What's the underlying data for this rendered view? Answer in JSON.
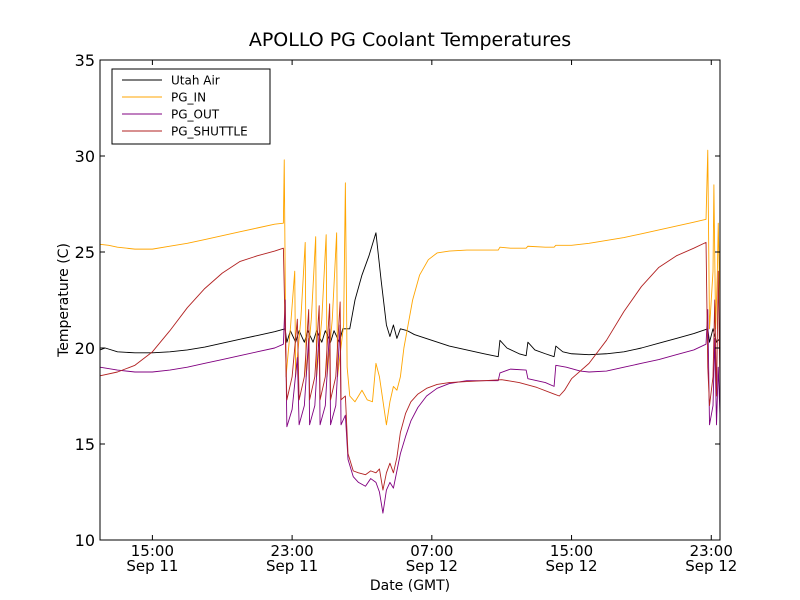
{
  "chart_data": {
    "type": "line",
    "title": "APOLLO PG Coolant Temperatures",
    "xlabel": "Date (GMT)",
    "ylabel": "Temperature (C)",
    "ylim": [
      10,
      35
    ],
    "xlim_hours": [
      12.0,
      47.5
    ],
    "x_unit": "hours since Sep 11 00:00 GMT",
    "grid": false,
    "legend_position": "top-left",
    "yticks": [
      {
        "value": 10,
        "label": "10"
      },
      {
        "value": 15,
        "label": "15"
      },
      {
        "value": 20,
        "label": "20"
      },
      {
        "value": 25,
        "label": "25"
      },
      {
        "value": 30,
        "label": "30"
      },
      {
        "value": 35,
        "label": "35"
      }
    ],
    "xticks": [
      {
        "value": 15,
        "time": "15:00",
        "date": "Sep 11"
      },
      {
        "value": 23,
        "time": "23:00",
        "date": "Sep 11"
      },
      {
        "value": 31,
        "time": "07:00",
        "date": "Sep 12"
      },
      {
        "value": 39,
        "time": "15:00",
        "date": "Sep 12"
      },
      {
        "value": 47,
        "time": "23:00",
        "date": "Sep 12"
      }
    ],
    "series": [
      {
        "name": "Utah Air",
        "color": "#000000",
        "points": [
          [
            12.0,
            19.9
          ],
          [
            12.3,
            20.0
          ],
          [
            13.0,
            19.8
          ],
          [
            14.0,
            19.75
          ],
          [
            15.0,
            19.75
          ],
          [
            16.0,
            19.8
          ],
          [
            17.0,
            19.9
          ],
          [
            18.0,
            20.05
          ],
          [
            19.0,
            20.25
          ],
          [
            20.0,
            20.45
          ],
          [
            21.0,
            20.65
          ],
          [
            22.0,
            20.85
          ],
          [
            22.6,
            21.0
          ],
          [
            22.7,
            20.3
          ],
          [
            22.9,
            20.9
          ],
          [
            23.2,
            20.3
          ],
          [
            23.4,
            20.9
          ],
          [
            23.7,
            20.3
          ],
          [
            23.9,
            20.9
          ],
          [
            24.2,
            20.3
          ],
          [
            24.4,
            20.9
          ],
          [
            24.7,
            20.3
          ],
          [
            24.9,
            20.9
          ],
          [
            25.2,
            20.3
          ],
          [
            25.4,
            20.9
          ],
          [
            25.7,
            20.3
          ],
          [
            25.9,
            21.0
          ],
          [
            26.3,
            21.0
          ],
          [
            26.6,
            22.5
          ],
          [
            27.0,
            23.8
          ],
          [
            27.4,
            24.8
          ],
          [
            27.8,
            26.0
          ],
          [
            28.1,
            23.5
          ],
          [
            28.4,
            21.2
          ],
          [
            28.6,
            20.6
          ],
          [
            28.8,
            21.2
          ],
          [
            29.0,
            20.5
          ],
          [
            29.2,
            21.0
          ],
          [
            29.6,
            20.9
          ],
          [
            30.0,
            20.7
          ],
          [
            31.0,
            20.4
          ],
          [
            32.0,
            20.1
          ],
          [
            33.0,
            19.9
          ],
          [
            34.0,
            19.7
          ],
          [
            34.8,
            19.55
          ],
          [
            34.9,
            20.4
          ],
          [
            35.3,
            20.0
          ],
          [
            36.0,
            19.7
          ],
          [
            36.4,
            19.6
          ],
          [
            36.5,
            20.3
          ],
          [
            36.9,
            19.9
          ],
          [
            37.5,
            19.7
          ],
          [
            38.0,
            19.55
          ],
          [
            38.1,
            20.1
          ],
          [
            38.5,
            19.8
          ],
          [
            39.0,
            19.7
          ],
          [
            40.0,
            19.65
          ],
          [
            41.0,
            19.7
          ],
          [
            42.0,
            19.8
          ],
          [
            43.0,
            20.0
          ],
          [
            44.0,
            20.25
          ],
          [
            45.0,
            20.5
          ],
          [
            46.0,
            20.75
          ],
          [
            46.8,
            21.0
          ],
          [
            46.9,
            20.3
          ],
          [
            47.1,
            21.0
          ],
          [
            47.3,
            20.3
          ],
          [
            47.5,
            20.5
          ]
        ]
      },
      {
        "name": "PG_IN",
        "color": "#ffa500",
        "points": [
          [
            12.0,
            25.4
          ],
          [
            12.5,
            25.35
          ],
          [
            13.0,
            25.25
          ],
          [
            14.0,
            25.15
          ],
          [
            15.0,
            25.15
          ],
          [
            16.0,
            25.3
          ],
          [
            17.0,
            25.45
          ],
          [
            18.0,
            25.65
          ],
          [
            19.0,
            25.85
          ],
          [
            20.0,
            26.05
          ],
          [
            21.0,
            26.25
          ],
          [
            22.0,
            26.45
          ],
          [
            22.5,
            26.5
          ],
          [
            22.55,
            29.8
          ],
          [
            22.65,
            18.5
          ],
          [
            22.9,
            21.0
          ],
          [
            23.15,
            24.0
          ],
          [
            23.2,
            18.5
          ],
          [
            23.5,
            21.5
          ],
          [
            23.75,
            25.5
          ],
          [
            23.8,
            18.5
          ],
          [
            24.1,
            21.5
          ],
          [
            24.35,
            25.8
          ],
          [
            24.4,
            18.5
          ],
          [
            24.7,
            21.5
          ],
          [
            24.95,
            25.9
          ],
          [
            25.0,
            18.5
          ],
          [
            25.3,
            21.5
          ],
          [
            25.55,
            26.0
          ],
          [
            25.6,
            18.5
          ],
          [
            25.95,
            21.2
          ],
          [
            26.05,
            28.6
          ],
          [
            26.15,
            19.0
          ],
          [
            26.3,
            17.5
          ],
          [
            26.6,
            17.2
          ],
          [
            27.0,
            17.8
          ],
          [
            27.3,
            17.3
          ],
          [
            27.6,
            17.2
          ],
          [
            27.8,
            19.2
          ],
          [
            28.0,
            18.5
          ],
          [
            28.4,
            16.0
          ],
          [
            28.6,
            17.2
          ],
          [
            28.8,
            18.0
          ],
          [
            29.0,
            17.8
          ],
          [
            29.2,
            18.5
          ],
          [
            29.4,
            20.0
          ],
          [
            29.6,
            21.0
          ],
          [
            29.9,
            22.5
          ],
          [
            30.3,
            23.8
          ],
          [
            30.8,
            24.6
          ],
          [
            31.3,
            24.95
          ],
          [
            32.0,
            25.05
          ],
          [
            33.0,
            25.1
          ],
          [
            34.0,
            25.1
          ],
          [
            34.8,
            25.1
          ],
          [
            34.9,
            25.25
          ],
          [
            35.5,
            25.2
          ],
          [
            36.4,
            25.2
          ],
          [
            36.5,
            25.3
          ],
          [
            37.5,
            25.25
          ],
          [
            38.0,
            25.25
          ],
          [
            38.1,
            25.35
          ],
          [
            39.0,
            25.35
          ],
          [
            40.0,
            25.45
          ],
          [
            41.0,
            25.6
          ],
          [
            42.0,
            25.75
          ],
          [
            43.0,
            25.95
          ],
          [
            44.0,
            26.15
          ],
          [
            45.0,
            26.35
          ],
          [
            46.0,
            26.55
          ],
          [
            46.7,
            26.7
          ],
          [
            46.8,
            30.3
          ],
          [
            46.9,
            21.0
          ],
          [
            47.1,
            24.0
          ],
          [
            47.15,
            28.5
          ],
          [
            47.25,
            21.0
          ],
          [
            47.35,
            24.0
          ],
          [
            47.4,
            26.5
          ],
          [
            47.5,
            22.0
          ]
        ]
      },
      {
        "name": "PG_OUT",
        "color": "#800080",
        "points": [
          [
            12.0,
            19.0
          ],
          [
            13.0,
            18.85
          ],
          [
            14.0,
            18.75
          ],
          [
            15.0,
            18.75
          ],
          [
            16.0,
            18.85
          ],
          [
            17.0,
            19.0
          ],
          [
            18.0,
            19.2
          ],
          [
            19.0,
            19.4
          ],
          [
            20.0,
            19.6
          ],
          [
            21.0,
            19.8
          ],
          [
            22.0,
            20.0
          ],
          [
            22.5,
            20.2
          ],
          [
            22.6,
            22.5
          ],
          [
            22.7,
            15.9
          ],
          [
            23.0,
            16.8
          ],
          [
            23.3,
            19.5
          ],
          [
            23.4,
            16.0
          ],
          [
            23.7,
            17.0
          ],
          [
            23.95,
            20.5
          ],
          [
            24.0,
            16.0
          ],
          [
            24.3,
            17.0
          ],
          [
            24.55,
            20.8
          ],
          [
            24.6,
            16.0
          ],
          [
            24.9,
            17.0
          ],
          [
            25.15,
            21.0
          ],
          [
            25.2,
            16.0
          ],
          [
            25.5,
            17.0
          ],
          [
            25.75,
            21.2
          ],
          [
            25.8,
            16.0
          ],
          [
            26.05,
            16.5
          ],
          [
            26.2,
            14.2
          ],
          [
            26.5,
            13.3
          ],
          [
            26.8,
            13.0
          ],
          [
            27.2,
            12.8
          ],
          [
            27.5,
            13.2
          ],
          [
            27.8,
            13.0
          ],
          [
            28.0,
            12.5
          ],
          [
            28.2,
            11.4
          ],
          [
            28.4,
            12.6
          ],
          [
            28.6,
            13.0
          ],
          [
            28.8,
            12.7
          ],
          [
            29.0,
            13.6
          ],
          [
            29.2,
            14.5
          ],
          [
            29.5,
            15.4
          ],
          [
            29.8,
            16.2
          ],
          [
            30.2,
            16.9
          ],
          [
            30.7,
            17.5
          ],
          [
            31.3,
            17.9
          ],
          [
            32.0,
            18.15
          ],
          [
            33.0,
            18.3
          ],
          [
            34.0,
            18.3
          ],
          [
            34.8,
            18.3
          ],
          [
            34.9,
            18.7
          ],
          [
            35.5,
            18.9
          ],
          [
            36.4,
            18.85
          ],
          [
            36.5,
            18.4
          ],
          [
            37.5,
            18.2
          ],
          [
            38.0,
            18.0
          ],
          [
            38.1,
            19.1
          ],
          [
            38.7,
            19.0
          ],
          [
            39.5,
            18.8
          ],
          [
            40.0,
            18.75
          ],
          [
            41.0,
            18.8
          ],
          [
            42.0,
            19.0
          ],
          [
            43.0,
            19.2
          ],
          [
            44.0,
            19.4
          ],
          [
            45.0,
            19.65
          ],
          [
            46.0,
            19.9
          ],
          [
            46.7,
            20.2
          ],
          [
            46.8,
            22.0
          ],
          [
            46.9,
            16.0
          ],
          [
            47.1,
            17.0
          ],
          [
            47.2,
            20.5
          ],
          [
            47.3,
            16.0
          ],
          [
            47.4,
            19.0
          ],
          [
            47.5,
            16.5
          ]
        ]
      },
      {
        "name": "PG_SHUTTLE",
        "color": "#b22222",
        "points": [
          [
            12.0,
            18.55
          ],
          [
            13.0,
            18.75
          ],
          [
            14.0,
            19.1
          ],
          [
            15.0,
            19.8
          ],
          [
            16.0,
            20.9
          ],
          [
            17.0,
            22.1
          ],
          [
            18.0,
            23.1
          ],
          [
            19.0,
            23.9
          ],
          [
            20.0,
            24.5
          ],
          [
            21.0,
            24.8
          ],
          [
            22.0,
            25.05
          ],
          [
            22.5,
            25.2
          ],
          [
            22.6,
            21.0
          ],
          [
            22.7,
            17.3
          ],
          [
            23.0,
            18.5
          ],
          [
            23.3,
            21.5
          ],
          [
            23.4,
            17.3
          ],
          [
            23.7,
            18.5
          ],
          [
            23.95,
            22.0
          ],
          [
            24.0,
            17.3
          ],
          [
            24.3,
            18.5
          ],
          [
            24.55,
            22.2
          ],
          [
            24.6,
            17.3
          ],
          [
            24.9,
            18.5
          ],
          [
            25.15,
            22.3
          ],
          [
            25.2,
            17.3
          ],
          [
            25.5,
            18.5
          ],
          [
            25.75,
            22.4
          ],
          [
            25.8,
            17.3
          ],
          [
            26.05,
            17.5
          ],
          [
            26.2,
            14.5
          ],
          [
            26.5,
            13.6
          ],
          [
            26.8,
            13.5
          ],
          [
            27.2,
            13.4
          ],
          [
            27.5,
            13.6
          ],
          [
            27.8,
            13.5
          ],
          [
            28.0,
            13.7
          ],
          [
            28.2,
            12.6
          ],
          [
            28.4,
            13.5
          ],
          [
            28.6,
            14.0
          ],
          [
            28.8,
            13.5
          ],
          [
            29.0,
            14.3
          ],
          [
            29.2,
            15.6
          ],
          [
            29.5,
            16.6
          ],
          [
            29.8,
            17.2
          ],
          [
            30.2,
            17.6
          ],
          [
            30.7,
            17.9
          ],
          [
            31.3,
            18.1
          ],
          [
            32.0,
            18.2
          ],
          [
            33.0,
            18.25
          ],
          [
            34.0,
            18.3
          ],
          [
            35.0,
            18.35
          ],
          [
            36.0,
            18.2
          ],
          [
            37.0,
            17.95
          ],
          [
            38.0,
            17.6
          ],
          [
            38.3,
            17.5
          ],
          [
            38.6,
            17.8
          ],
          [
            39.0,
            18.4
          ],
          [
            40.0,
            19.2
          ],
          [
            41.0,
            20.4
          ],
          [
            42.0,
            21.9
          ],
          [
            43.0,
            23.2
          ],
          [
            44.0,
            24.2
          ],
          [
            45.0,
            24.8
          ],
          [
            46.0,
            25.2
          ],
          [
            46.7,
            25.5
          ],
          [
            46.8,
            19.0
          ],
          [
            46.9,
            17.0
          ],
          [
            47.1,
            18.5
          ],
          [
            47.2,
            22.5
          ],
          [
            47.3,
            17.5
          ],
          [
            47.4,
            24.0
          ],
          [
            47.5,
            18.0
          ]
        ]
      }
    ]
  }
}
